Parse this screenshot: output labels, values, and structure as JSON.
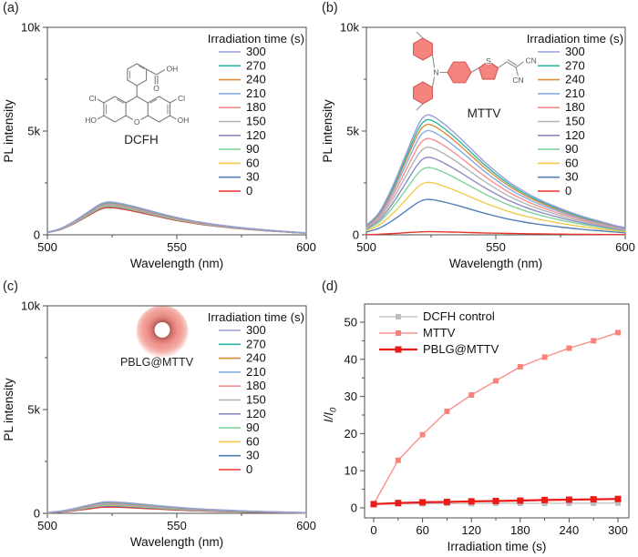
{
  "colors": {
    "frame": "#4d4d4d",
    "text": "#111111",
    "molecule_bond": "#7d7d7d",
    "mttv_ring_fill": "#f5837e",
    "mttv_ring_stroke": "#d4605c"
  },
  "panels": {
    "a": {
      "label": "(a)",
      "inset_label": "DCFH",
      "atoms": {
        "cl_left": "Cl",
        "cl_right": "Cl",
        "ho_left": "HO",
        "oh_right": "OH",
        "o_center": "O",
        "cooh_o": "O",
        "cooh_oh": "OH"
      }
    },
    "b": {
      "label": "(b)",
      "inset_label": "MTTV",
      "atoms": {
        "n": "N",
        "s": "S",
        "cn_top": "CN",
        "cn_bottom": "CN"
      }
    },
    "c": {
      "label": "(c)",
      "inset_label": "PBLG@MTTV"
    },
    "d": {
      "label": "(d)"
    }
  },
  "chart_data": [
    {
      "panel": "a",
      "type": "line",
      "title": "",
      "xlabel": "Wavelength (nm)",
      "ylabel": "PL intensity",
      "xlim": [
        500,
        600
      ],
      "ylim": [
        0,
        10000
      ],
      "xticks": [
        500,
        550,
        600
      ],
      "xticks_minor": [
        525,
        575
      ],
      "yticks": [
        0,
        5000,
        10000
      ],
      "ytick_labels": [
        "0",
        "5k",
        "10k"
      ],
      "yticks_minor": [
        2500,
        7500
      ],
      "legend_title": "Irradiation time (s)",
      "legend_position": "upper right",
      "grid": false,
      "wavelengths": [
        500,
        505,
        510,
        515,
        520,
        523,
        526,
        530,
        535,
        540,
        545,
        550,
        555,
        560,
        565,
        570,
        575,
        580,
        585,
        590,
        595,
        600
      ],
      "profile": [
        0.08,
        0.19,
        0.4,
        0.66,
        0.92,
        1.0,
        0.99,
        0.93,
        0.835,
        0.73,
        0.625,
        0.53,
        0.445,
        0.375,
        0.315,
        0.265,
        0.22,
        0.18,
        0.145,
        0.115,
        0.085,
        0.06
      ],
      "series": [
        {
          "name": "300",
          "color": "#9c9ed8",
          "peak": 1580
        },
        {
          "name": "270",
          "color": "#2fb3a9",
          "peak": 1555
        },
        {
          "name": "240",
          "color": "#dd8b3b",
          "peak": 1530
        },
        {
          "name": "210",
          "color": "#86aede",
          "peak": 1505
        },
        {
          "name": "180",
          "color": "#f4918e",
          "peak": 1480
        },
        {
          "name": "150",
          "color": "#b5b5b5",
          "peak": 1458
        },
        {
          "name": "120",
          "color": "#8a8bc4",
          "peak": 1436
        },
        {
          "name": "90",
          "color": "#7fd499",
          "peak": 1412
        },
        {
          "name": "60",
          "color": "#f2c84d",
          "peak": 1386
        },
        {
          "name": "30",
          "color": "#5480b6",
          "peak": 1356
        },
        {
          "name": "0",
          "color": "#e8352b",
          "peak": 1310
        }
      ]
    },
    {
      "panel": "b",
      "type": "line",
      "title": "",
      "xlabel": "Wavelength (nm)",
      "ylabel": "PL intensity",
      "xlim": [
        500,
        600
      ],
      "ylim": [
        0,
        10000
      ],
      "xticks": [
        500,
        550,
        600
      ],
      "xticks_minor": [
        525,
        575
      ],
      "yticks": [
        0,
        5000,
        10000
      ],
      "ytick_labels": [
        "0",
        "5k",
        "10k"
      ],
      "yticks_minor": [
        2500,
        7500
      ],
      "legend_title": "Irradiation time (s)",
      "legend_position": "upper right",
      "grid": false,
      "wavelengths": [
        500,
        505,
        510,
        515,
        520,
        523,
        526,
        530,
        535,
        540,
        545,
        550,
        555,
        560,
        565,
        570,
        575,
        580,
        585,
        590,
        595,
        600
      ],
      "profile": [
        0.08,
        0.19,
        0.4,
        0.66,
        0.92,
        1.0,
        0.99,
        0.93,
        0.835,
        0.73,
        0.625,
        0.53,
        0.445,
        0.375,
        0.315,
        0.265,
        0.22,
        0.18,
        0.145,
        0.115,
        0.085,
        0.06
      ],
      "series": [
        {
          "name": "300",
          "color": "#9c9ed8",
          "peak": 5750
        },
        {
          "name": "270",
          "color": "#2fb3a9",
          "peak": 5520
        },
        {
          "name": "240",
          "color": "#dd8b3b",
          "peak": 5300
        },
        {
          "name": "210",
          "color": "#86aede",
          "peak": 5000
        },
        {
          "name": "180",
          "color": "#f4918e",
          "peak": 4620
        },
        {
          "name": "150",
          "color": "#b5b5b5",
          "peak": 4200
        },
        {
          "name": "120",
          "color": "#8a8bc4",
          "peak": 3720
        },
        {
          "name": "90",
          "color": "#7fd499",
          "peak": 3230
        },
        {
          "name": "60",
          "color": "#f2c84d",
          "peak": 2520
        },
        {
          "name": "30",
          "color": "#5480b6",
          "peak": 1700
        },
        {
          "name": "0",
          "color": "#e8352b",
          "peak": 150
        }
      ]
    },
    {
      "panel": "c",
      "type": "line",
      "title": "",
      "xlabel": "Wavelength (nm)",
      "ylabel": "PL intensity",
      "xlim": [
        500,
        600
      ],
      "ylim": [
        0,
        10000
      ],
      "xticks": [
        500,
        550,
        600
      ],
      "xticks_minor": [
        525,
        575
      ],
      "yticks": [
        0,
        5000,
        10000
      ],
      "ytick_labels": [
        "0",
        "5k",
        "10k"
      ],
      "yticks_minor": [
        2500,
        7500
      ],
      "legend_title": "Irradiation time (s)",
      "legend_position": "upper right",
      "grid": false,
      "wavelengths": [
        500,
        505,
        510,
        515,
        520,
        523,
        526,
        530,
        535,
        540,
        545,
        550,
        555,
        560,
        565,
        570,
        575,
        580,
        585,
        590,
        595,
        600
      ],
      "profile": [
        0.08,
        0.19,
        0.4,
        0.66,
        0.92,
        1.0,
        0.99,
        0.93,
        0.835,
        0.73,
        0.625,
        0.53,
        0.445,
        0.375,
        0.315,
        0.265,
        0.22,
        0.18,
        0.145,
        0.115,
        0.085,
        0.06
      ],
      "series": [
        {
          "name": "300",
          "color": "#9c9ed8",
          "peak": 555
        },
        {
          "name": "270",
          "color": "#2fb3a9",
          "peak": 535
        },
        {
          "name": "240",
          "color": "#dd8b3b",
          "peak": 515
        },
        {
          "name": "210",
          "color": "#86aede",
          "peak": 495
        },
        {
          "name": "180",
          "color": "#f4918e",
          "peak": 475
        },
        {
          "name": "150",
          "color": "#b5b5b5",
          "peak": 455
        },
        {
          "name": "120",
          "color": "#8a8bc4",
          "peak": 435
        },
        {
          "name": "90",
          "color": "#7fd499",
          "peak": 410
        },
        {
          "name": "60",
          "color": "#f2c84d",
          "peak": 385
        },
        {
          "name": "30",
          "color": "#5480b6",
          "peak": 350
        },
        {
          "name": "0",
          "color": "#e8352b",
          "peak": 300
        }
      ]
    },
    {
      "panel": "d",
      "type": "scatter-line",
      "title": "",
      "xlabel": "Irradiation time (s)",
      "ylabel": "I/I",
      "ylabel_sub": "0",
      "xlim": [
        0,
        300
      ],
      "ylim": [
        0,
        50
      ],
      "xticks": [
        0,
        60,
        120,
        180,
        240,
        300
      ],
      "xticks_minor": [
        30,
        90,
        150,
        210,
        270
      ],
      "yticks": [
        0,
        10,
        20,
        30,
        40,
        50
      ],
      "ytick_labels": [
        "0",
        "10",
        "20",
        "30",
        "40",
        "50"
      ],
      "yticks_minor": [
        5,
        15,
        25,
        35,
        45
      ],
      "legend_position": "upper left",
      "grid": false,
      "x": [
        0,
        30,
        60,
        90,
        120,
        150,
        180,
        210,
        240,
        270,
        300
      ],
      "series": [
        {
          "name": "DCFH control",
          "color": "#c6c6c6",
          "marker_color": "#bdbdbd",
          "line_width": 1.4,
          "marker_size": 6,
          "values": [
            1.0,
            1.1,
            1.1,
            1.15,
            1.15,
            1.2,
            1.2,
            1.2,
            1.25,
            1.25,
            1.3
          ]
        },
        {
          "name": "MTTV",
          "color": "#f9928b",
          "marker_color": "#f8837c",
          "line_width": 1.4,
          "marker_size": 6,
          "values": [
            1.0,
            12.8,
            19.7,
            26.0,
            30.4,
            34.2,
            38.0,
            40.6,
            43.0,
            45.0,
            47.2
          ]
        },
        {
          "name": "PBLG@MTTV",
          "color": "#eb1b17",
          "marker_color": "#eb1b17",
          "line_width": 2.2,
          "marker_size": 7,
          "values": [
            1.0,
            1.3,
            1.5,
            1.6,
            1.75,
            1.85,
            1.95,
            2.1,
            2.2,
            2.3,
            2.4
          ]
        }
      ]
    }
  ]
}
